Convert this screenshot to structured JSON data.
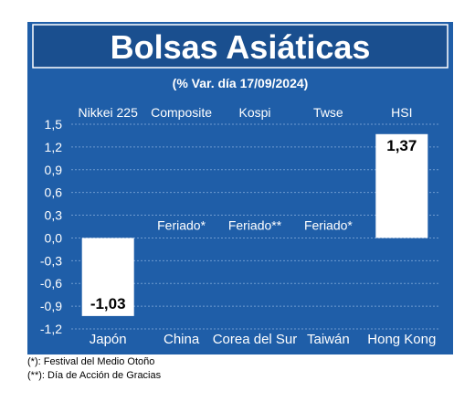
{
  "title": "Bolsas Asiáticas",
  "subtitle": "(% Var. día 17/09/2024)",
  "colors": {
    "background": "#1f5ea8",
    "border": "#1a4f8f",
    "title_band": "#1a4f8f",
    "grid": "#6f9bd0",
    "bar": "#ffffff",
    "text": "#ffffff",
    "label_text": "#000000"
  },
  "chart_data": {
    "type": "bar",
    "categories": [
      "Japón",
      "China",
      "Corea del Sur",
      "Taiwán",
      "Hong Kong"
    ],
    "index_names": [
      "Nikkei 225",
      "Composite",
      "Kospi",
      "Twse",
      "HSI"
    ],
    "values": [
      -1.03,
      null,
      null,
      null,
      1.37
    ],
    "value_labels": [
      "-1,03",
      "Feriado*",
      "Feriado**",
      "Feriado*",
      "1,37"
    ],
    "ylim": [
      -1.2,
      1.5
    ],
    "yticks": [
      1.5,
      1.2,
      0.9,
      0.6,
      0.3,
      0.0,
      -0.3,
      -0.6,
      -0.9,
      -1.2
    ],
    "ytick_labels": [
      "1,5",
      "1,2",
      "0,9",
      "0,6",
      "0,3",
      "0,0",
      "-0,3",
      "-0,6",
      "-0,9",
      "-1,2"
    ],
    "grid": true,
    "title": "Bolsas Asiáticas",
    "subtitle": "(% Var. día 17/09/2024)",
    "xlabel": "",
    "ylabel": ""
  },
  "footnotes": [
    "(*): Festival del Medio Otoño",
    "(**): Día de Acción de Gracias"
  ]
}
